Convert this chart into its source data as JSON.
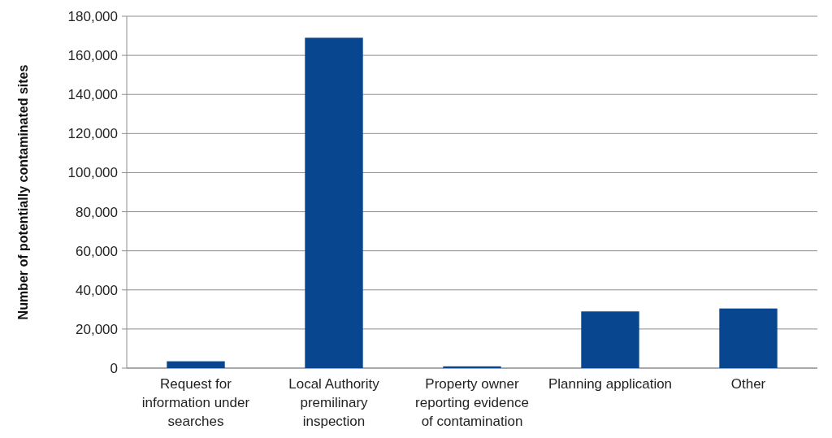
{
  "chart_data": {
    "type": "bar",
    "ylabel": "Number of potentially contaminated sites",
    "categories": [
      "Request for information under searches",
      "Local Authority premilinary inspection",
      "Property owner reporting evidence of contamination",
      "Planning application",
      "Other"
    ],
    "values": [
      3500,
      169000,
      900,
      29000,
      30500
    ],
    "color": "#08468f",
    "ylim": [
      0,
      180000
    ],
    "yticks": [
      {
        "value": 0,
        "label": "0"
      },
      {
        "value": 20000,
        "label": "20,000"
      },
      {
        "value": 40000,
        "label": "40,000"
      },
      {
        "value": 60000,
        "label": "60,000"
      },
      {
        "value": 80000,
        "label": "80,000"
      },
      {
        "value": 100000,
        "label": "100,000"
      },
      {
        "value": 120000,
        "label": "120,000"
      },
      {
        "value": 140000,
        "label": "140,000"
      },
      {
        "value": 160000,
        "label": "160,000"
      },
      {
        "value": 180000,
        "label": "180,000"
      }
    ],
    "grid": "y"
  }
}
